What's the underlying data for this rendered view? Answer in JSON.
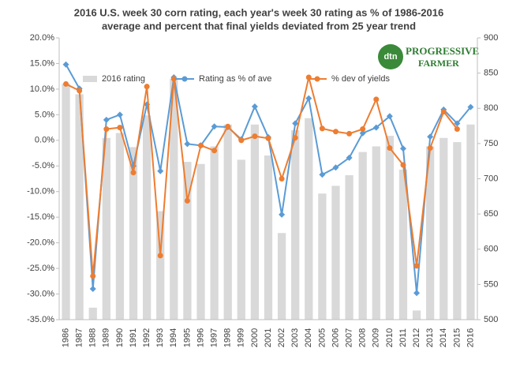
{
  "chart_data": {
    "type": "bar-line",
    "title": [
      "2016 U.S. week 30 corn rating, each year's week 30 rating as % of 1986-2016",
      "average and percent that final yields deviated from 25 year trend"
    ],
    "logo": {
      "brand": "dtn",
      "line1": "PROGRESSIVE",
      "line2": "FARMER"
    },
    "categories": [
      "1986",
      "1987",
      "1988",
      "1989",
      "1990",
      "1991",
      "1992",
      "1993",
      "1994",
      "1995",
      "1996",
      "1997",
      "1998",
      "1999",
      "2000",
      "2001",
      "2002",
      "2003",
      "2004",
      "2005",
      "2006",
      "2007",
      "2008",
      "2009",
      "2010",
      "2011",
      "2012",
      "2013",
      "2014",
      "2015",
      "2016"
    ],
    "series": [
      {
        "name": "2016 rating",
        "type": "bar",
        "axis": "y2",
        "color": "#d9d9d9",
        "values": [
          835,
          820,
          517,
          758,
          765,
          745,
          790,
          654,
          842,
          724,
          721,
          746,
          777,
          727,
          777,
          733,
          623,
          769,
          786,
          679,
          690,
          705,
          738,
          746,
          761,
          713,
          513,
          746,
          758,
          752,
          777
        ]
      },
      {
        "name": "Rating as % of ave",
        "type": "line",
        "color": "#5b9bd5",
        "values": [
          14.8,
          10.1,
          -29.0,
          4.0,
          5.0,
          -5.0,
          7.0,
          -6.0,
          12.3,
          -0.7,
          -1.0,
          2.7,
          2.6,
          0.2,
          6.6,
          0.6,
          -14.5,
          3.3,
          8.2,
          -6.7,
          -5.3,
          -3.4,
          1.4,
          2.5,
          4.7,
          -1.6,
          -29.8,
          0.7,
          6.0,
          3.3,
          6.5
        ]
      },
      {
        "name": "% dev of yields",
        "type": "line",
        "color": "#ed7d31",
        "values": [
          11.0,
          9.7,
          -26.5,
          2.2,
          2.5,
          -6.3,
          10.5,
          -22.5,
          12.0,
          -11.8,
          -1.0,
          -2.0,
          2.7,
          0.0,
          0.8,
          0.4,
          -7.5,
          0.5,
          12.3,
          2.3,
          1.7,
          1.3,
          2.2,
          8.0,
          -1.5,
          -4.8,
          -24.5,
          -1.5,
          5.6,
          2.2,
          null
        ]
      }
    ],
    "ylim": [
      -35,
      20
    ],
    "yticks": [
      {
        "value": 20,
        "label": "20.0%"
      },
      {
        "value": 15,
        "label": "15.0%"
      },
      {
        "value": 10,
        "label": "10.0%"
      },
      {
        "value": 5,
        "label": "5.0%"
      },
      {
        "value": 0,
        "label": "0.0%"
      },
      {
        "value": -5,
        "label": "-5.0%"
      },
      {
        "value": -10,
        "label": "-10.0%"
      },
      {
        "value": -15,
        "label": "-15.0%"
      },
      {
        "value": -20,
        "label": "-20.0%"
      },
      {
        "value": -25,
        "label": "-25.0%"
      },
      {
        "value": -30,
        "label": "-30.0%"
      },
      {
        "value": -35,
        "label": "-35.0%"
      }
    ],
    "y2lim": [
      500,
      900
    ],
    "y2ticks": [
      500,
      550,
      600,
      650,
      700,
      750,
      800,
      850,
      900
    ]
  }
}
